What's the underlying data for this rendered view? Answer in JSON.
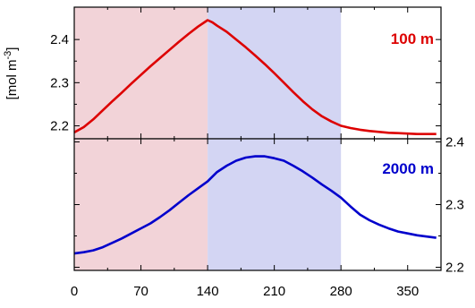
{
  "chart_data": [
    {
      "type": "line",
      "panel_label": "100 m",
      "ylabel": "[mol m",
      "ylabel_sup": "-3",
      "ylabel_close": "]",
      "y_axis_side": "left",
      "xlim": [
        0,
        385
      ],
      "ylim": [
        2.17,
        2.475
      ],
      "yticks": [
        "2.2",
        "2.3",
        "2.4"
      ],
      "ytick_values": [
        2.2,
        2.3,
        2.4
      ],
      "shaded_regions": [
        {
          "x_start": 0,
          "x_end": 140,
          "color": "#f2d3d8"
        },
        {
          "x_start": 140,
          "x_end": 280,
          "color": "#d3d5f3"
        }
      ],
      "series": [
        {
          "color": "#dd0000",
          "x": [
            0,
            10,
            20,
            30,
            40,
            50,
            60,
            70,
            80,
            90,
            100,
            110,
            120,
            130,
            140,
            145,
            150,
            160,
            170,
            180,
            190,
            200,
            210,
            220,
            230,
            240,
            250,
            260,
            270,
            280,
            290,
            300,
            310,
            320,
            330,
            340,
            350,
            360,
            370,
            380
          ],
          "y": [
            2.185,
            2.197,
            2.215,
            2.236,
            2.257,
            2.277,
            2.298,
            2.318,
            2.338,
            2.357,
            2.376,
            2.395,
            2.413,
            2.43,
            2.445,
            2.44,
            2.432,
            2.418,
            2.4,
            2.382,
            2.363,
            2.343,
            2.322,
            2.3,
            2.278,
            2.257,
            2.238,
            2.222,
            2.21,
            2.2,
            2.195,
            2.191,
            2.188,
            2.186,
            2.184,
            2.183,
            2.182,
            2.181,
            2.181,
            2.181
          ]
        }
      ]
    },
    {
      "type": "line",
      "panel_label": "2000 m",
      "y_axis_side": "right",
      "xlim": [
        0,
        385
      ],
      "ylim": [
        2.195,
        2.405
      ],
      "yticks": [
        "2.2",
        "2.3",
        "2.4"
      ],
      "ytick_values": [
        2.2,
        2.3,
        2.4
      ],
      "xticks": [
        "0",
        "70",
        "140",
        "210",
        "280",
        "350"
      ],
      "xtick_values": [
        0,
        70,
        140,
        210,
        280,
        350
      ],
      "shaded_regions": [
        {
          "x_start": 0,
          "x_end": 140,
          "color": "#f2d3d8"
        },
        {
          "x_start": 140,
          "x_end": 280,
          "color": "#d3d5f3"
        }
      ],
      "series": [
        {
          "color": "#0000cc",
          "x": [
            0,
            10,
            20,
            30,
            40,
            50,
            60,
            70,
            80,
            90,
            100,
            110,
            120,
            130,
            140,
            150,
            160,
            170,
            180,
            190,
            200,
            210,
            220,
            230,
            240,
            250,
            260,
            270,
            280,
            290,
            300,
            310,
            320,
            330,
            340,
            350,
            360,
            370,
            380
          ],
          "y": [
            2.222,
            2.224,
            2.227,
            2.232,
            2.239,
            2.246,
            2.254,
            2.262,
            2.27,
            2.28,
            2.291,
            2.303,
            2.315,
            2.326,
            2.337,
            2.352,
            2.362,
            2.37,
            2.375,
            2.377,
            2.377,
            2.374,
            2.37,
            2.362,
            2.353,
            2.343,
            2.332,
            2.322,
            2.311,
            2.297,
            2.284,
            2.275,
            2.268,
            2.262,
            2.257,
            2.254,
            2.251,
            2.249,
            2.247
          ]
        }
      ]
    }
  ]
}
